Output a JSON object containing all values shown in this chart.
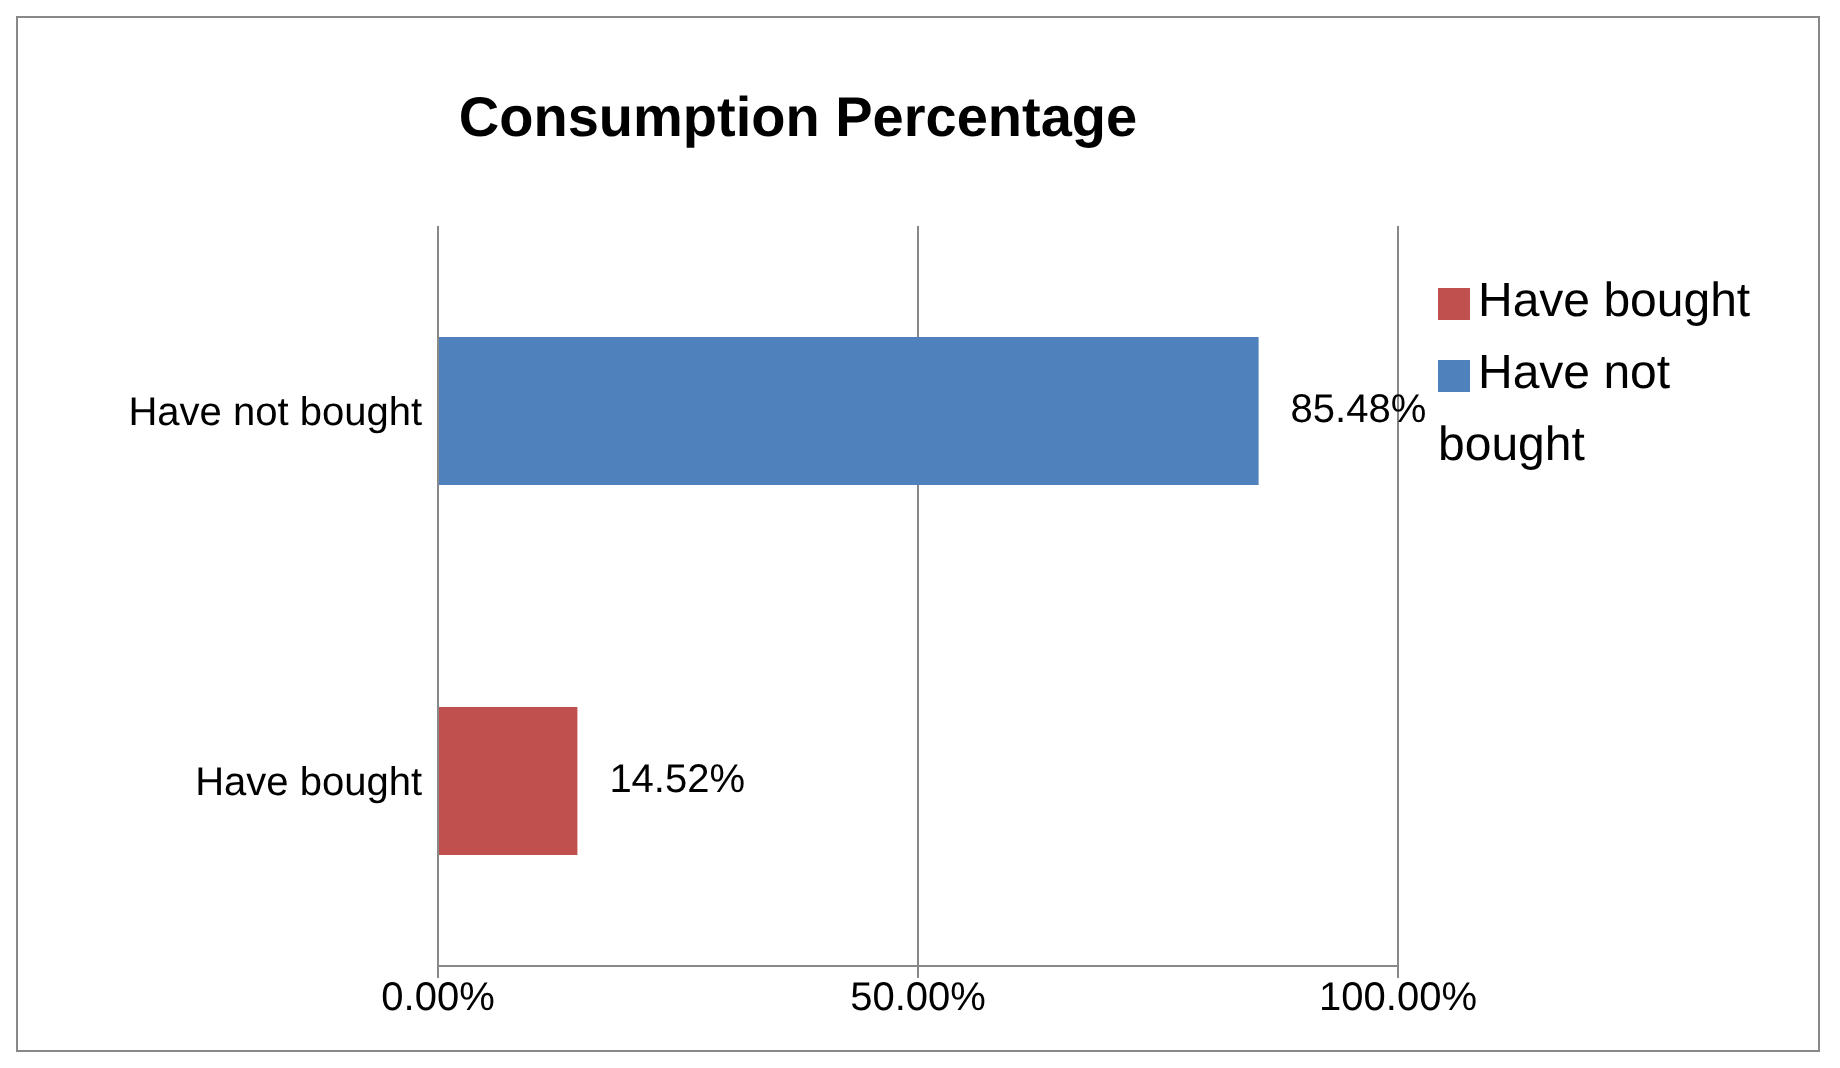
{
  "chart_data": {
    "type": "bar",
    "title": "Consumption Percentage",
    "orientation": "horizontal",
    "stacked": true,
    "categories": [
      "Have not bought",
      "Have bought"
    ],
    "series": [
      {
        "name": "Have bought",
        "color": "#c0504d",
        "values": [
          null,
          14.52
        ],
        "value_labels": [
          null,
          "14.52%"
        ]
      },
      {
        "name": "Have not bought",
        "color": "#4f81bd",
        "values": [
          85.48,
          null
        ],
        "value_labels": [
          "85.48%",
          null
        ]
      }
    ],
    "xlim": [
      0,
      100
    ],
    "xticks": [
      {
        "value": 0,
        "label": "0.00%"
      },
      {
        "value": 50,
        "label": "50.00%"
      },
      {
        "value": 100,
        "label": "100.00%"
      }
    ],
    "grid": "x",
    "legend": "right"
  }
}
